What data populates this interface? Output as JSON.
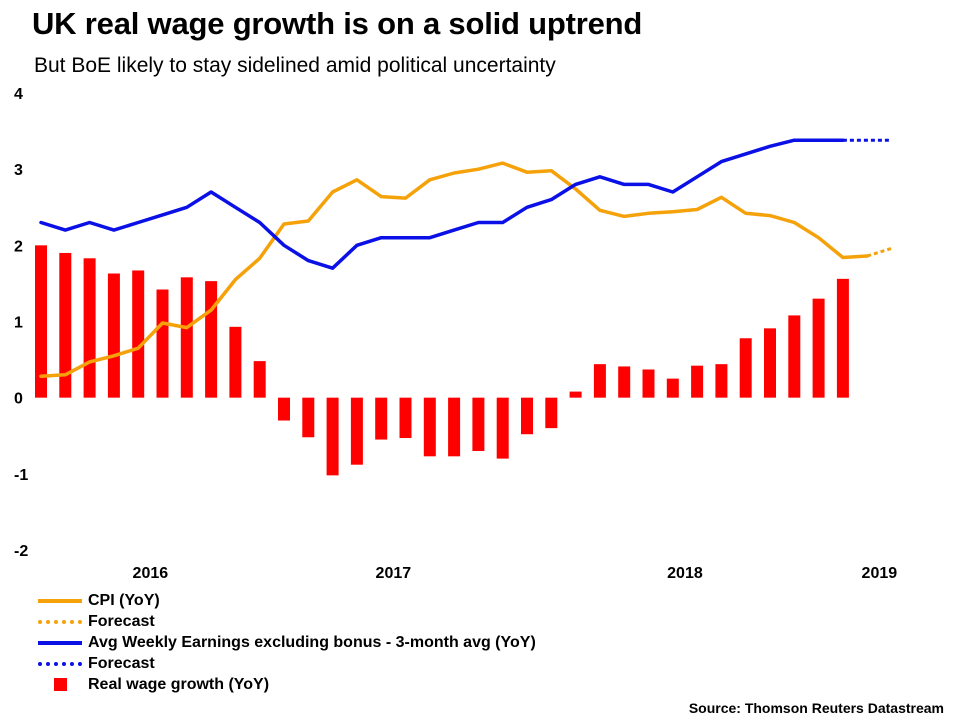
{
  "title": "UK real wage growth is on a solid uptrend",
  "subtitle": "But BoE likely to stay sidelined amid political uncertainty",
  "source": "Source: Thomson Reuters Datastream",
  "colors": {
    "cpi": "#f5a20a",
    "earnings": "#0a10e6",
    "real_wage": "#ff0000"
  },
  "legend": [
    {
      "label": "CPI (YoY)",
      "style": "line",
      "color": "#f5a20a"
    },
    {
      "label": "Forecast",
      "style": "dotted",
      "color": "#f5a20a"
    },
    {
      "label": "Avg Weekly Earnings excluding bonus - 3-month avg (YoY)",
      "style": "line",
      "color": "#0a10e6"
    },
    {
      "label": "Forecast",
      "style": "dotted",
      "color": "#0a10e6"
    },
    {
      "label": "Real wage growth (YoY)",
      "style": "box",
      "color": "#ff0000"
    }
  ],
  "chart_data": {
    "type": "bar+line",
    "title": "UK real wage growth is on a solid uptrend",
    "ylim": [
      -2,
      4
    ],
    "yticks": [
      "4",
      "3",
      "2",
      "1",
      "0",
      "-1",
      "-2"
    ],
    "ytick_values": [
      4,
      3,
      2,
      1,
      0,
      -1,
      -2
    ],
    "x_year_labels": [
      {
        "label": "2016",
        "index": 4.5
      },
      {
        "label": "2017",
        "index": 14.5
      },
      {
        "label": "2018",
        "index": 26.5
      },
      {
        "label": "2019",
        "index": 34.5
      }
    ],
    "n_periods": 35,
    "series": [
      {
        "name": "Real wage growth (YoY)",
        "kind": "bar",
        "values": [
          2.0,
          1.9,
          1.83,
          1.63,
          1.67,
          1.42,
          1.58,
          1.53,
          0.93,
          0.48,
          -0.3,
          -0.52,
          -1.02,
          -0.88,
          -0.55,
          -0.53,
          -0.77,
          -0.77,
          -0.7,
          -0.8,
          -0.48,
          -0.4,
          0.08,
          0.44,
          0.41,
          0.37,
          0.25,
          0.42,
          0.44,
          0.78,
          0.91,
          1.08,
          1.3,
          1.56
        ]
      },
      {
        "name": "CPI (YoY)",
        "kind": "line",
        "values": [
          0.28,
          0.3,
          0.47,
          0.55,
          0.65,
          0.98,
          0.92,
          1.15,
          1.55,
          1.83,
          2.28,
          2.32,
          2.7,
          2.86,
          2.64,
          2.62,
          2.86,
          2.95,
          3.0,
          3.08,
          2.96,
          2.98,
          2.74,
          2.46,
          2.38,
          2.42,
          2.44,
          2.47,
          2.63,
          2.42,
          2.39,
          2.3,
          2.1,
          1.84,
          1.86
        ]
      },
      {
        "name": "CPI Forecast",
        "kind": "dotted",
        "values": [
          null,
          null,
          null,
          null,
          null,
          null,
          null,
          null,
          null,
          null,
          null,
          null,
          null,
          null,
          null,
          null,
          null,
          null,
          null,
          null,
          null,
          null,
          null,
          null,
          null,
          null,
          null,
          null,
          null,
          null,
          null,
          null,
          null,
          null,
          1.86,
          1.96
        ]
      },
      {
        "name": "Avg Weekly Earnings excluding bonus - 3-month avg (YoY)",
        "kind": "line",
        "values": [
          2.3,
          2.2,
          2.3,
          2.2,
          2.3,
          2.4,
          2.5,
          2.7,
          2.5,
          2.3,
          2.0,
          1.8,
          1.7,
          2.0,
          2.1,
          2.1,
          2.1,
          2.2,
          2.3,
          2.3,
          2.5,
          2.6,
          2.8,
          2.9,
          2.8,
          2.8,
          2.7,
          2.9,
          3.1,
          3.2,
          3.3,
          3.38,
          3.38,
          3.38
        ]
      },
      {
        "name": "Avg Weekly Earnings Forecast",
        "kind": "dotted",
        "values": [
          null,
          null,
          null,
          null,
          null,
          null,
          null,
          null,
          null,
          null,
          null,
          null,
          null,
          null,
          null,
          null,
          null,
          null,
          null,
          null,
          null,
          null,
          null,
          null,
          null,
          null,
          null,
          null,
          null,
          null,
          null,
          null,
          null,
          3.38,
          3.38,
          3.38
        ]
      }
    ]
  }
}
